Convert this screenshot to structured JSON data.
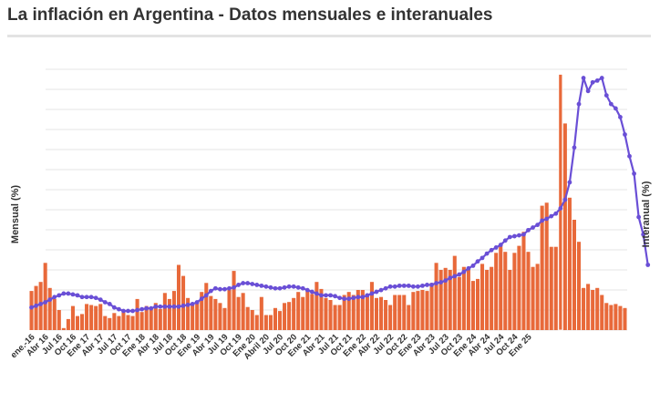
{
  "title": "La inflación en Argentina - Datos mensuales e interanuales",
  "chart_data": {
    "type": "bar+line",
    "title": "La inflación en Argentina - Datos mensuales e interanuales",
    "ylabel_left": "Mensual (%)",
    "ylabel_right": "Interanual (%)",
    "ylim_left": [
      0,
      26
    ],
    "ylim_right": [
      0,
      300
    ],
    "grid": true,
    "tick_labels": [
      "ene.-16",
      "Abr 16",
      "Jul 16",
      "Oct 16",
      "Ene 17",
      "Abr 17",
      "Jul 17",
      "Oct 17",
      "Ene 18",
      "Abr 18",
      "Jul 18",
      "Oct 18",
      "Ene 19",
      "Abr 19",
      "Jul 19",
      "Oct 19",
      "Ene 20",
      "Abril 20",
      "Jul 20",
      "Oct 20",
      "Ene 21",
      "Abr 21",
      "Jul 21",
      "Oct 21",
      "Ene 22",
      "Abr 22",
      "Jul 22",
      "Oct 22",
      "Ene 23",
      "Abr 23",
      "Jul 23",
      "Oct 23",
      "Ene 24",
      "Abr 24",
      "Jul 24",
      "Oct 24",
      "Ene 25"
    ],
    "colors": {
      "mensual": "#e8693a",
      "interanual": "#6a4fd6",
      "grid": "#e6e6e6"
    },
    "series": [
      {
        "name": "Mensual (%)",
        "kind": "bar",
        "values": [
          3.9,
          4.4,
          4.8,
          6.7,
          4.2,
          3.1,
          2.0,
          0.2,
          1.1,
          2.4,
          1.4,
          1.6,
          2.6,
          2.5,
          2.4,
          2.6,
          1.4,
          1.2,
          1.7,
          1.4,
          1.9,
          1.5,
          1.4,
          3.1,
          1.8,
          2.4,
          2.3,
          2.7,
          2.1,
          3.7,
          3.1,
          3.9,
          6.5,
          5.4,
          3.2,
          2.6,
          2.9,
          3.8,
          4.7,
          3.4,
          3.1,
          2.7,
          2.2,
          4.0,
          5.9,
          3.3,
          3.7,
          2.3,
          2.0,
          1.5,
          3.3,
          1.5,
          1.5,
          2.2,
          1.9,
          2.7,
          2.8,
          3.2,
          3.8,
          3.3,
          4.0,
          3.6,
          4.8,
          4.1,
          3.2,
          3.0,
          2.5,
          2.5,
          3.5,
          3.8,
          3.5,
          4.0,
          4.0,
          3.6,
          4.8,
          3.2,
          3.3,
          3.0,
          2.5,
          3.5,
          3.5,
          3.5,
          2.5,
          3.8,
          3.9,
          4.0,
          3.9,
          4.7,
          6.7,
          6.0,
          6.2,
          6.0,
          7.4,
          5.3,
          6.3,
          6.2,
          4.9,
          5.1,
          6.6,
          6.0,
          6.3,
          7.7,
          8.4,
          7.8,
          6.0,
          7.7,
          8.4,
          9.8,
          7.8,
          6.3,
          6.6,
          12.4,
          12.7,
          8.3,
          8.3,
          25.5,
          20.6,
          13.2,
          11.0,
          8.8,
          4.2,
          4.6,
          4.0,
          4.2,
          3.5,
          2.7,
          2.5,
          2.6,
          2.4,
          2.2
        ],
        "highlight_index": 115
      },
      {
        "name": "Interanual (%)",
        "kind": "line",
        "values": [
          26,
          28,
          30,
          32,
          35,
          38,
          40,
          42,
          42,
          41,
          40,
          38,
          38,
          38,
          37,
          35,
          32,
          30,
          26,
          24,
          22,
          22,
          22,
          23,
          24,
          25,
          25,
          27,
          27,
          27,
          27,
          27,
          27,
          28,
          29,
          30,
          32,
          36,
          40,
          45,
          48,
          47,
          47,
          48,
          49,
          52,
          54,
          54,
          53,
          52,
          51,
          50,
          49,
          48,
          48,
          49,
          50,
          50,
          49,
          48,
          46,
          44,
          42,
          40,
          40,
          40,
          39,
          37,
          36,
          36,
          37,
          38,
          38,
          40,
          42,
          44,
          46,
          48,
          50,
          50,
          51,
          51,
          51,
          50,
          50,
          51,
          52,
          52,
          54,
          55,
          57,
          60,
          62,
          64,
          67,
          71,
          74,
          79,
          83,
          88,
          92,
          95,
          98,
          103,
          107,
          108,
          109,
          110,
          115,
          118,
          121,
          126,
          128,
          131,
          134,
          140,
          150,
          170,
          210,
          260,
          290,
          275,
          285,
          287,
          290,
          270,
          260,
          255,
          245,
          225,
          200,
          180,
          130,
          110,
          75
        ]
      }
    ]
  }
}
